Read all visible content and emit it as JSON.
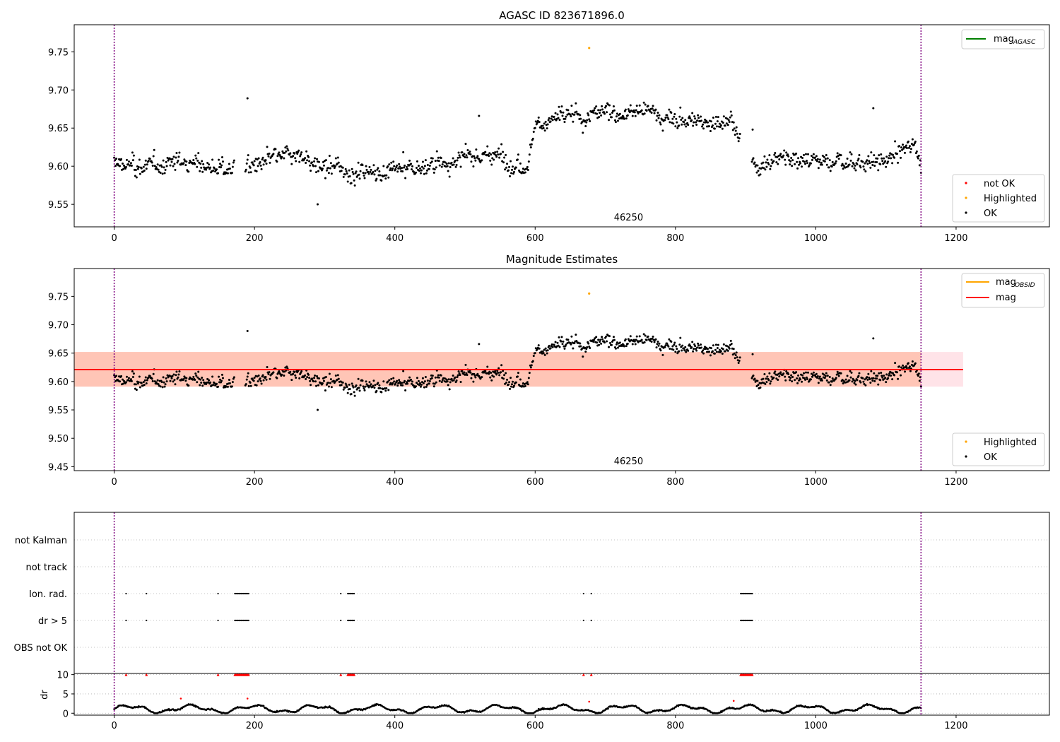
{
  "colors": {
    "ok": "#000000",
    "not_ok": "#ff0000",
    "highlighted": "#ffa500",
    "mag_agasc": "#008000",
    "mag_obsid": "#ffa500",
    "mag": "#ff0000",
    "band_mag": "#ffc0cb",
    "band_obsid": "#ffa07a",
    "obs_boundary": "#800080",
    "grid": "#b0b0b0"
  },
  "chart_data": [
    {
      "type": "scatter",
      "title": "AGASC ID 823671896.0",
      "xlabel": "",
      "ylabel": "",
      "xlim": [
        -57,
        1333
      ],
      "ylim": [
        9.5205,
        9.7855
      ],
      "xticks": [
        0,
        200,
        400,
        600,
        800,
        1000,
        1200
      ],
      "yticks": [
        9.55,
        9.6,
        9.65,
        9.7,
        9.75
      ],
      "ytick_labels": [
        "9.55",
        "9.60",
        "9.65",
        "9.70",
        "9.75"
      ],
      "obs_boundaries": [
        0,
        1150
      ],
      "obsid_annotation": {
        "text": "46250",
        "x": 575
      },
      "legend_lines": [
        {
          "name": "mag",
          "sub": "AGASC",
          "color": "mag_agasc"
        }
      ],
      "legend_points": [
        {
          "name": "not OK",
          "color": "not_ok"
        },
        {
          "name": "Highlighted",
          "color": "highlighted"
        },
        {
          "name": "OK",
          "color": "ok"
        }
      ],
      "series": [
        {
          "name": "OK",
          "description": "~1150 magnitude samples (black points), ranging 9.55-9.70",
          "profile": [
            [
              0,
              9.603
            ],
            [
              50,
              9.598
            ],
            [
              100,
              9.608
            ],
            [
              160,
              9.595
            ],
            [
              200,
              9.601
            ],
            [
              260,
              9.615
            ],
            [
              300,
              9.595
            ],
            [
              400,
              9.593
            ],
            [
              470,
              9.605
            ],
            [
              540,
              9.615
            ],
            [
              590,
              9.603
            ],
            [
              600,
              9.658
            ],
            [
              700,
              9.67
            ],
            [
              760,
              9.672
            ],
            [
              800,
              9.66
            ],
            [
              880,
              9.658
            ],
            [
              900,
              9.61
            ],
            [
              920,
              9.602
            ],
            [
              960,
              9.617
            ],
            [
              1000,
              9.606
            ],
            [
              1100,
              9.606
            ],
            [
              1140,
              9.63
            ],
            [
              1150,
              9.597
            ]
          ]
        },
        {
          "name": "Highlighted",
          "points": [
            [
              677,
              9.755
            ]
          ]
        },
        {
          "name": "not OK",
          "points": []
        }
      ],
      "outliers": [
        [
          190,
          9.689
        ],
        [
          290,
          9.55
        ],
        [
          1082,
          9.676
        ],
        [
          910,
          9.648
        ],
        [
          520,
          9.666
        ]
      ]
    },
    {
      "type": "scatter",
      "title": "Magnitude Estimates",
      "xlabel": "",
      "ylabel": "",
      "xlim": [
        -57,
        1333
      ],
      "ylim": [
        9.443,
        9.799
      ],
      "xticks": [
        0,
        200,
        400,
        600,
        800,
        1000,
        1200
      ],
      "yticks": [
        9.45,
        9.5,
        9.55,
        9.6,
        9.65,
        9.7,
        9.75
      ],
      "ytick_labels": [
        "9.45",
        "9.50",
        "9.55",
        "9.60",
        "9.65",
        "9.70",
        "9.75"
      ],
      "obs_boundaries": [
        0,
        1150
      ],
      "obsid_annotation": {
        "text": "46250",
        "x": 575
      },
      "mag_line": {
        "y": 9.621,
        "x_range": [
          -57,
          1210
        ],
        "band": [
          9.591,
          9.652
        ]
      },
      "mag_obsid_band": {
        "x_range": [
          -57,
          1150
        ],
        "band": [
          9.591,
          9.652
        ]
      },
      "legend_lines": [
        {
          "name": "mag",
          "sub": "OBSID",
          "color": "mag_obsid"
        },
        {
          "name": "mag",
          "sub": "",
          "color": "mag"
        }
      ],
      "legend_points": [
        {
          "name": "Highlighted",
          "color": "highlighted"
        },
        {
          "name": "OK",
          "color": "ok"
        }
      ],
      "series": [
        {
          "name": "OK",
          "description": "same magnitude samples as top panel"
        },
        {
          "name": "Highlighted",
          "points": [
            [
              677,
              9.755
            ]
          ]
        }
      ]
    },
    {
      "type": "scatter",
      "title": "",
      "xlabel": "",
      "ylabel": "",
      "xlim": [
        -57,
        1333
      ],
      "xticks": [
        0,
        200,
        400,
        600,
        800,
        1000,
        1200
      ],
      "flag_rows": [
        "not Kalman",
        "not track",
        "Ion. rad.",
        "dr > 5",
        "OBS not OK"
      ],
      "flag_events": {
        "not Kalman": [],
        "not track": [],
        "Ion. rad.": [
          [
            17,
            17
          ],
          [
            46,
            46
          ],
          [
            148,
            148
          ],
          [
            172,
            192
          ],
          [
            323,
            323
          ],
          [
            333,
            342
          ],
          [
            669,
            669
          ],
          [
            680,
            680
          ],
          [
            893,
            910
          ]
        ],
        "dr > 5": [
          [
            17,
            17
          ],
          [
            46,
            46
          ],
          [
            148,
            148
          ],
          [
            172,
            192
          ],
          [
            323,
            323
          ],
          [
            333,
            342
          ],
          [
            669,
            669
          ],
          [
            680,
            680
          ],
          [
            893,
            910
          ]
        ],
        "OBS not OK": []
      },
      "obs_boundaries": [
        0,
        1150
      ]
    },
    {
      "type": "scatter",
      "title": "",
      "xlabel": "",
      "ylabel": "dr",
      "xlim": [
        -57,
        1333
      ],
      "ylim": [
        -0.5,
        10.3
      ],
      "xticks": [
        0,
        200,
        400,
        600,
        800,
        1000,
        1200
      ],
      "xtick_labels": [
        "0",
        "200",
        "400",
        "600",
        "800",
        "1000",
        "1200"
      ],
      "yticks": [
        0,
        5,
        10
      ],
      "ytick_labels": [
        "0",
        "5",
        "10"
      ],
      "obs_boundaries": [
        0,
        1150
      ],
      "series": [
        {
          "name": "OK",
          "description": "dr values ~0-2.5 following an oscillating trace"
        },
        {
          "name": "not OK",
          "description": "red markers: dr clipped at 10 during flagged intervals, plus a few small red points",
          "points": [
            [
              95,
              3.8
            ],
            [
              190,
              3.8
            ],
            [
              677,
              3.0
            ],
            [
              883,
              3.2
            ]
          ]
        }
      ]
    }
  ]
}
